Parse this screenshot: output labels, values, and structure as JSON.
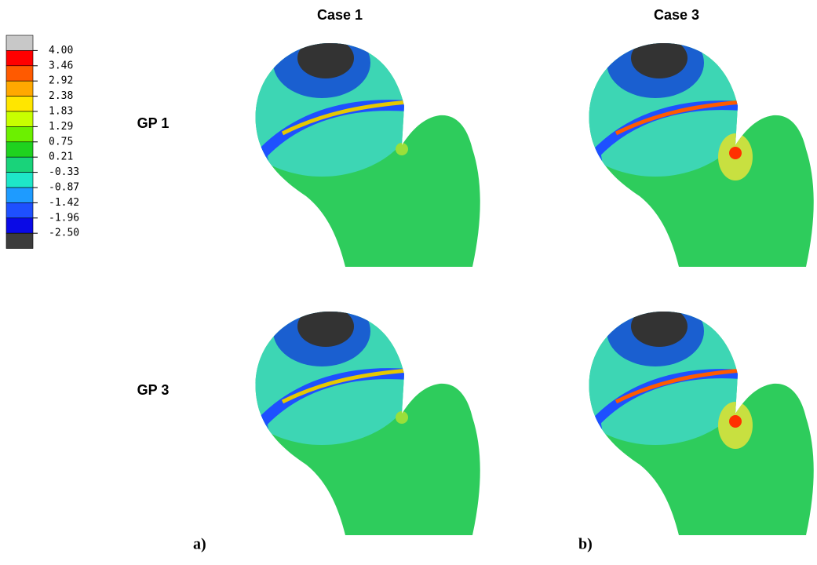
{
  "columns": [
    "Case 1",
    "Case 3"
  ],
  "rows": [
    "GP 1",
    "GP 3"
  ],
  "legend": {
    "labels": [
      "4.00",
      "3.46",
      "2.92",
      "2.38",
      "1.83",
      "1.29",
      "0.75",
      "0.21",
      "-0.33",
      "-0.87",
      "-1.42",
      "-1.96",
      "-2.50"
    ],
    "colors": [
      "#c8c8c8",
      "#ff0000",
      "#ff5a00",
      "#ffa800",
      "#ffe600",
      "#c8ff00",
      "#6cf000",
      "#1fd21f",
      "#19d37a",
      "#1ee6c8",
      "#1e9bff",
      "#1e50ff",
      "#0a0ae6",
      "#3c3c3c"
    ]
  },
  "panels": [
    "a)",
    "b)"
  ]
}
